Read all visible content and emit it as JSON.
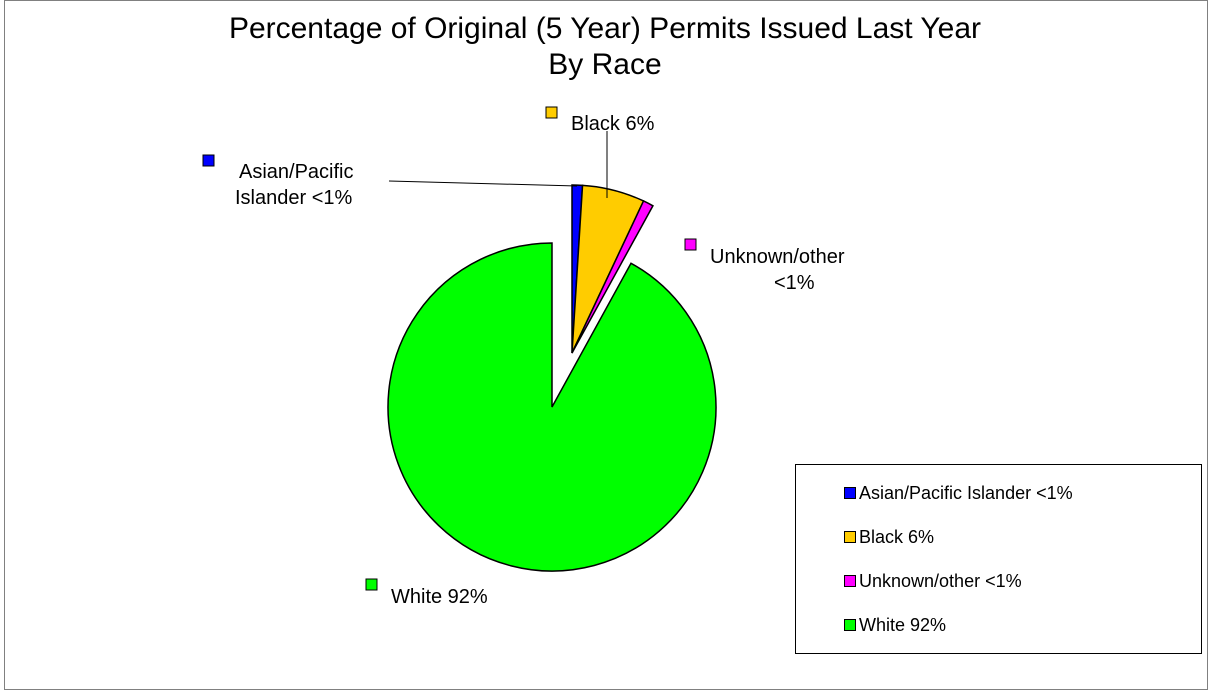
{
  "chart_data": {
    "type": "pie",
    "title": "Percentage of Original (5 Year) Permits Issued Last Year",
    "subtitle": "By Race",
    "legend_position": "bottom-right",
    "slices": [
      {
        "label": "Asian/Pacific Islander <1%",
        "callout": [
          "Asian/Pacific",
          "Islander <1%"
        ],
        "value": 1,
        "color": "#0000ff"
      },
      {
        "label": "Black 6%",
        "callout": [
          "Black 6%"
        ],
        "value": 6,
        "color": "#ffcc00"
      },
      {
        "label": "Unknown/other <1%",
        "callout": [
          "Unknown/other",
          "<1%"
        ],
        "value": 1,
        "color": "#ff00ff"
      },
      {
        "label": "White 92%",
        "callout": [
          "White 92%"
        ],
        "value": 92,
        "color": "#00ff00"
      }
    ]
  }
}
